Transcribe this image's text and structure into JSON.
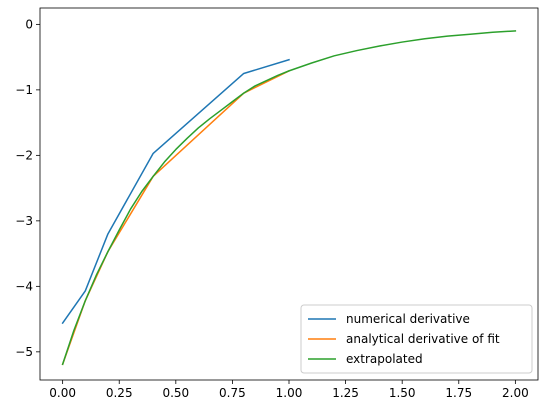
{
  "chart_data": {
    "type": "line",
    "title": "",
    "xlabel": "",
    "ylabel": "",
    "xlim": [
      -0.1,
      2.1
    ],
    "ylim": [
      -5.43,
      0.25
    ],
    "xticks": [
      0.0,
      0.25,
      0.5,
      0.75,
      1.0,
      1.25,
      1.5,
      1.75,
      2.0
    ],
    "xtick_labels": [
      "0.00",
      "0.25",
      "0.50",
      "0.75",
      "1.00",
      "1.25",
      "1.50",
      "1.75",
      "2.00"
    ],
    "yticks": [
      0,
      -1,
      -2,
      -3,
      -4,
      -5
    ],
    "ytick_labels": [
      "0",
      "−1",
      "−2",
      "−3",
      "−4",
      "−5"
    ],
    "grid": false,
    "legend_position": "lower-right",
    "series": [
      {
        "name": "numerical derivative",
        "color": "#1f77b4",
        "x": [
          0.0,
          0.1,
          0.2,
          0.4,
          0.8,
          1.0
        ],
        "y": [
          -4.56,
          -4.07,
          -3.2,
          -1.97,
          -0.75,
          -0.54
        ]
      },
      {
        "name": "analytical derivative of fit",
        "color": "#ff7f0e",
        "x": [
          0.0,
          0.1,
          0.2,
          0.4,
          0.8,
          1.0
        ],
        "y": [
          -5.19,
          -4.22,
          -3.47,
          -2.32,
          -1.05,
          -0.71
        ]
      },
      {
        "name": "extrapolated",
        "color": "#2ca02c",
        "x": [
          0.0,
          0.05,
          0.1,
          0.15,
          0.2,
          0.25,
          0.3,
          0.35,
          0.4,
          0.45,
          0.5,
          0.55,
          0.6,
          0.65,
          0.7,
          0.75,
          0.8,
          0.85,
          0.9,
          0.95,
          1.0,
          1.1,
          1.2,
          1.3,
          1.4,
          1.5,
          1.6,
          1.7,
          1.8,
          1.9,
          2.0
        ],
        "y": [
          -5.19,
          -4.67,
          -4.22,
          -3.82,
          -3.47,
          -3.14,
          -2.82,
          -2.55,
          -2.32,
          -2.1,
          -1.91,
          -1.74,
          -1.58,
          -1.44,
          -1.31,
          -1.18,
          -1.05,
          -0.94,
          -0.86,
          -0.78,
          -0.71,
          -0.59,
          -0.48,
          -0.4,
          -0.33,
          -0.27,
          -0.22,
          -0.18,
          -0.15,
          -0.12,
          -0.1
        ]
      }
    ]
  }
}
